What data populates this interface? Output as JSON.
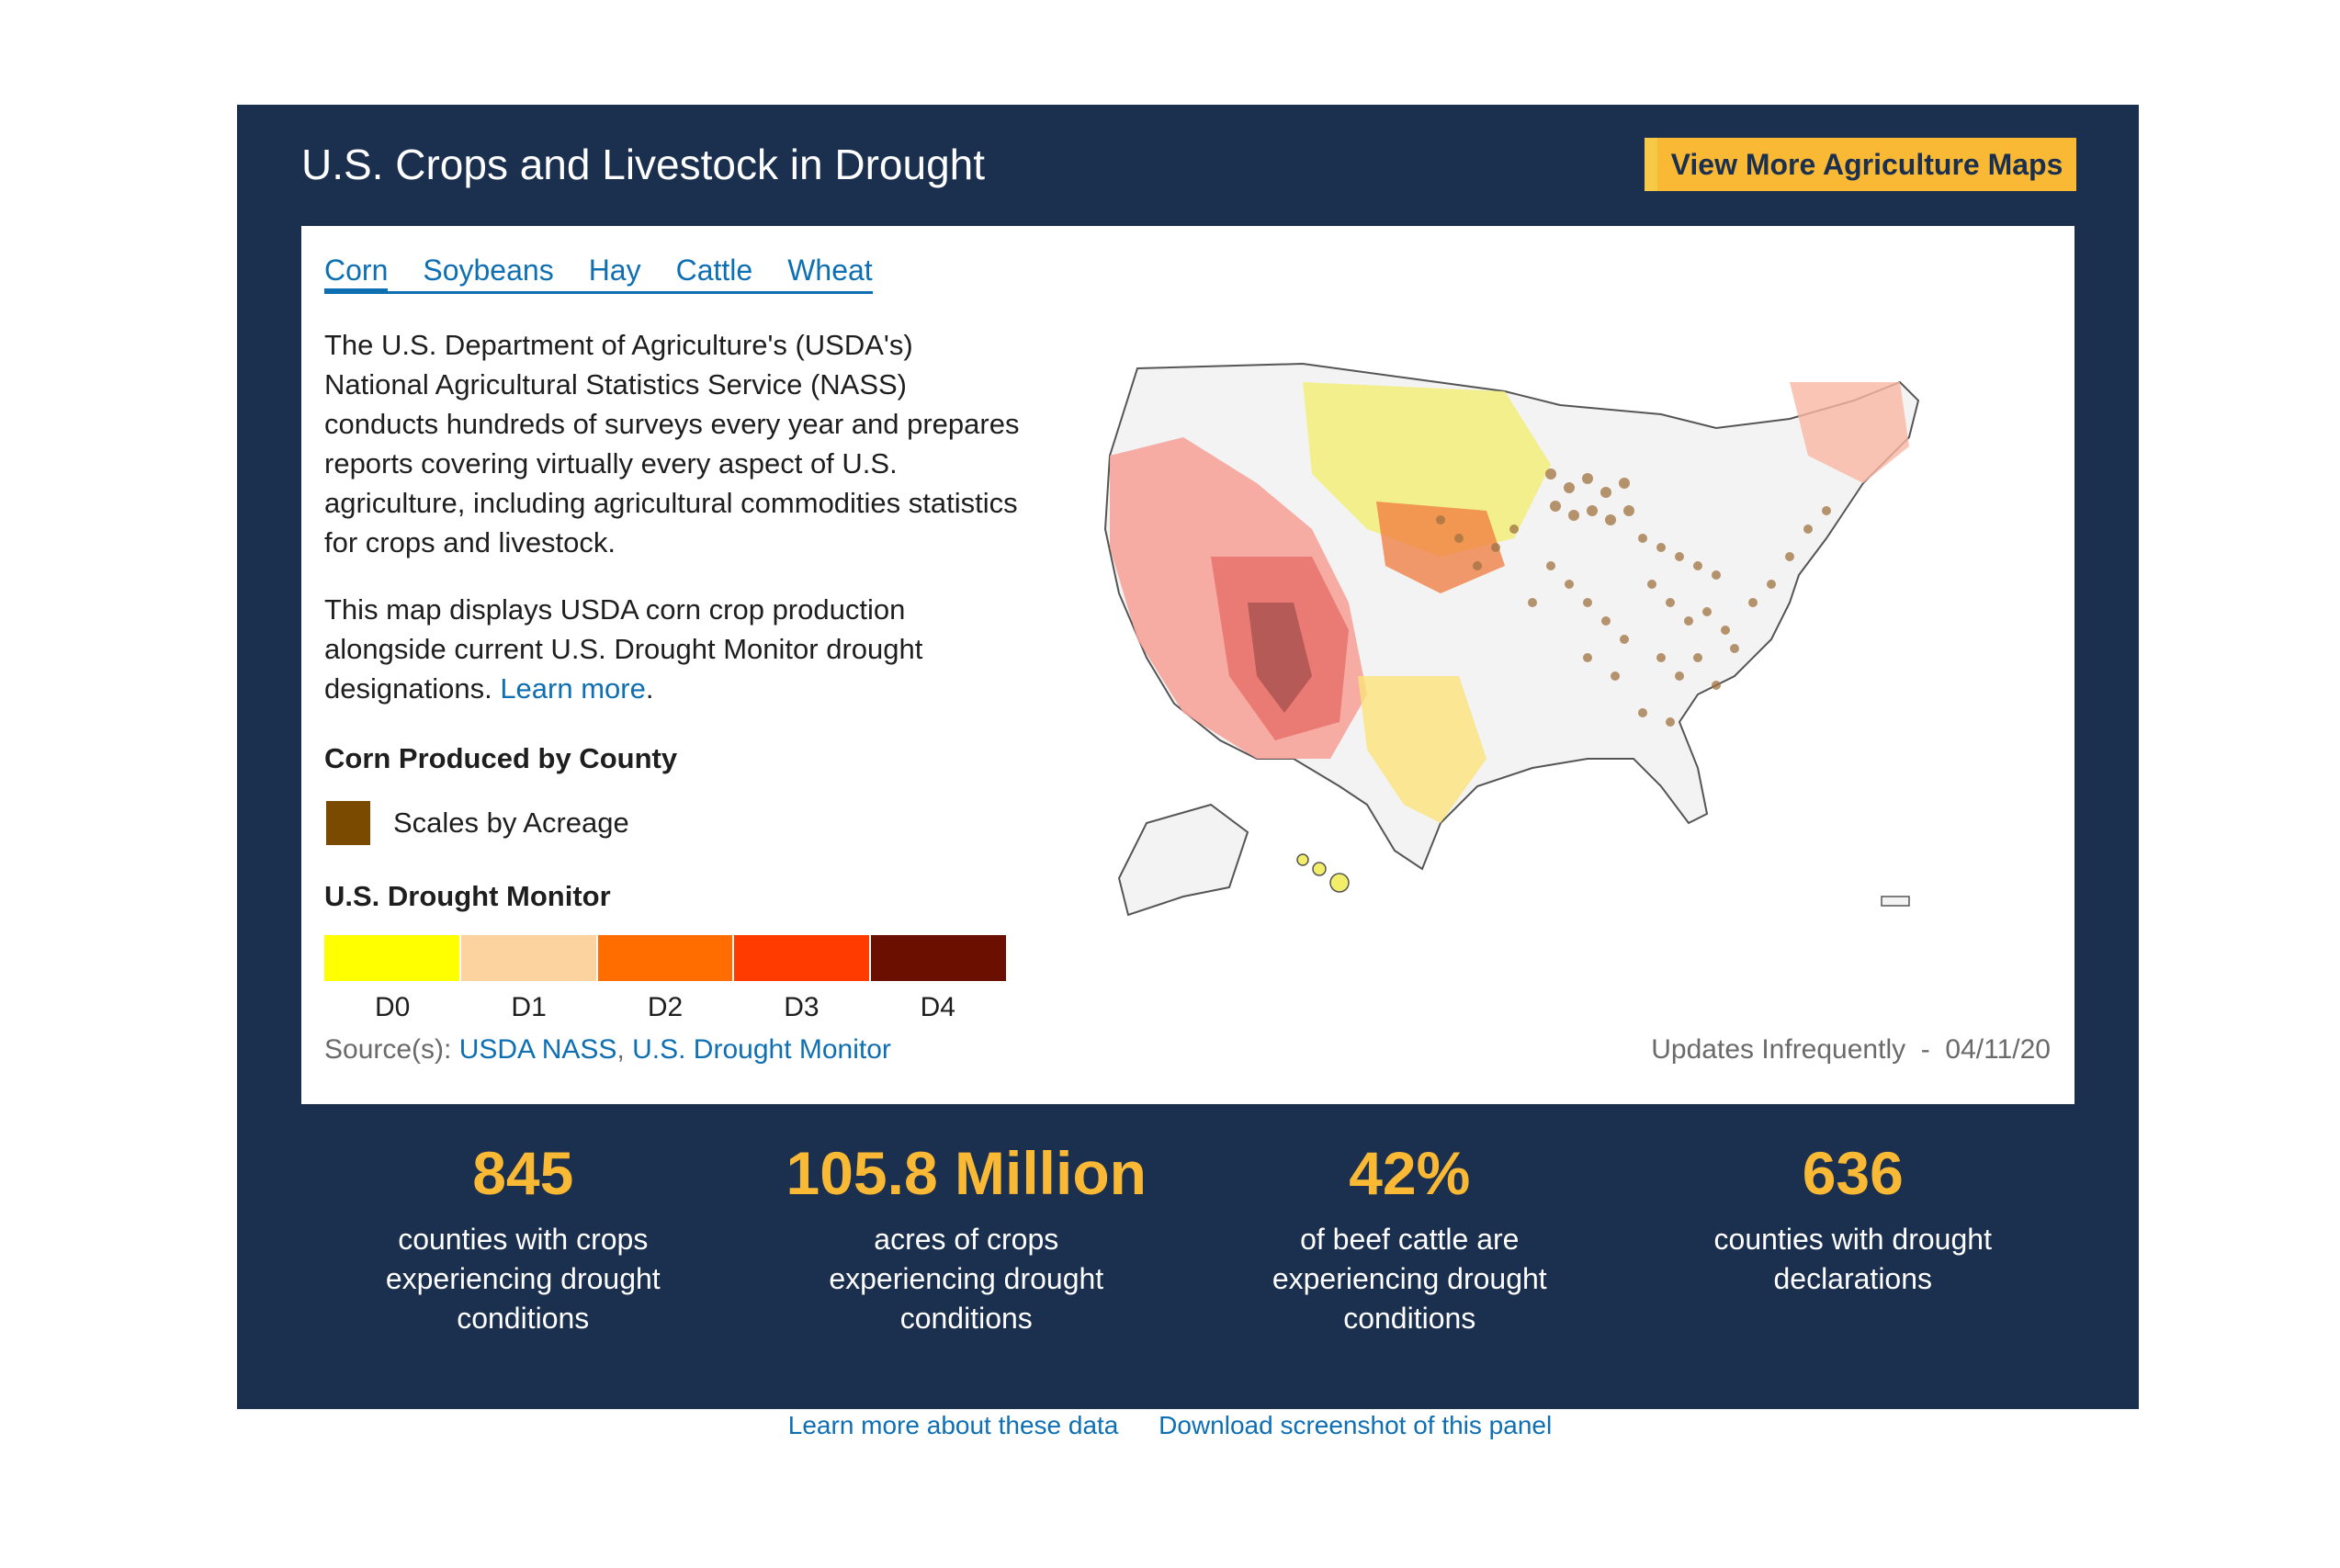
{
  "header": {
    "title": "U.S. Crops and Livestock in Drought",
    "more_button": "View More Agriculture Maps"
  },
  "tabs": [
    {
      "label": "Corn",
      "active": true
    },
    {
      "label": "Soybeans",
      "active": false
    },
    {
      "label": "Hay",
      "active": false
    },
    {
      "label": "Cattle",
      "active": false
    },
    {
      "label": "Wheat",
      "active": false
    }
  ],
  "description": {
    "p1": "The U.S. Department of Agriculture's (USDA's) National Agricultural Statistics Service (NASS) conducts hundreds of surveys every year and prepares reports covering virtually every aspect of U.S. agriculture, including agricultural commodities statistics for crops and livestock.",
    "p2_text": "This map displays USDA corn crop production alongside current U.S. Drought Monitor drought designations.",
    "p2_link": "Learn more",
    "p2_tail": "."
  },
  "legend": {
    "corn_title": "Corn Produced by County",
    "corn_swatch_label": "Scales by Acreage",
    "corn_color": "#7a4a00",
    "drought_title": "U.S. Drought Monitor",
    "drought_levels": [
      {
        "label": "D0",
        "color": "#ffff00"
      },
      {
        "label": "D1",
        "color": "#fcd39e"
      },
      {
        "label": "D2",
        "color": "#ff6d00"
      },
      {
        "label": "D3",
        "color": "#ff3b00"
      },
      {
        "label": "D4",
        "color": "#6b0f00"
      }
    ]
  },
  "source": {
    "prefix": "Source(s): ",
    "link1": "USDA NASS",
    "sep": ", ",
    "link2": "U.S. Drought Monitor"
  },
  "updates": "Updates Infrequently  -  04/11/20",
  "stats": [
    {
      "value": "845",
      "label": "counties with crops experiencing drought conditions"
    },
    {
      "value": "105.8 Million",
      "label": "acres of crops experiencing drought conditions"
    },
    {
      "value": "42%",
      "label": "of beef cattle are experiencing drought conditions"
    },
    {
      "value": "636",
      "label": "counties with drought declarations"
    }
  ],
  "footer": {
    "link1": "Learn more about these data",
    "link2": "Download screenshot of this panel"
  },
  "colors": {
    "panel_bg": "#1b2f4f",
    "accent": "#f9b935",
    "link": "#0e6fb3"
  }
}
